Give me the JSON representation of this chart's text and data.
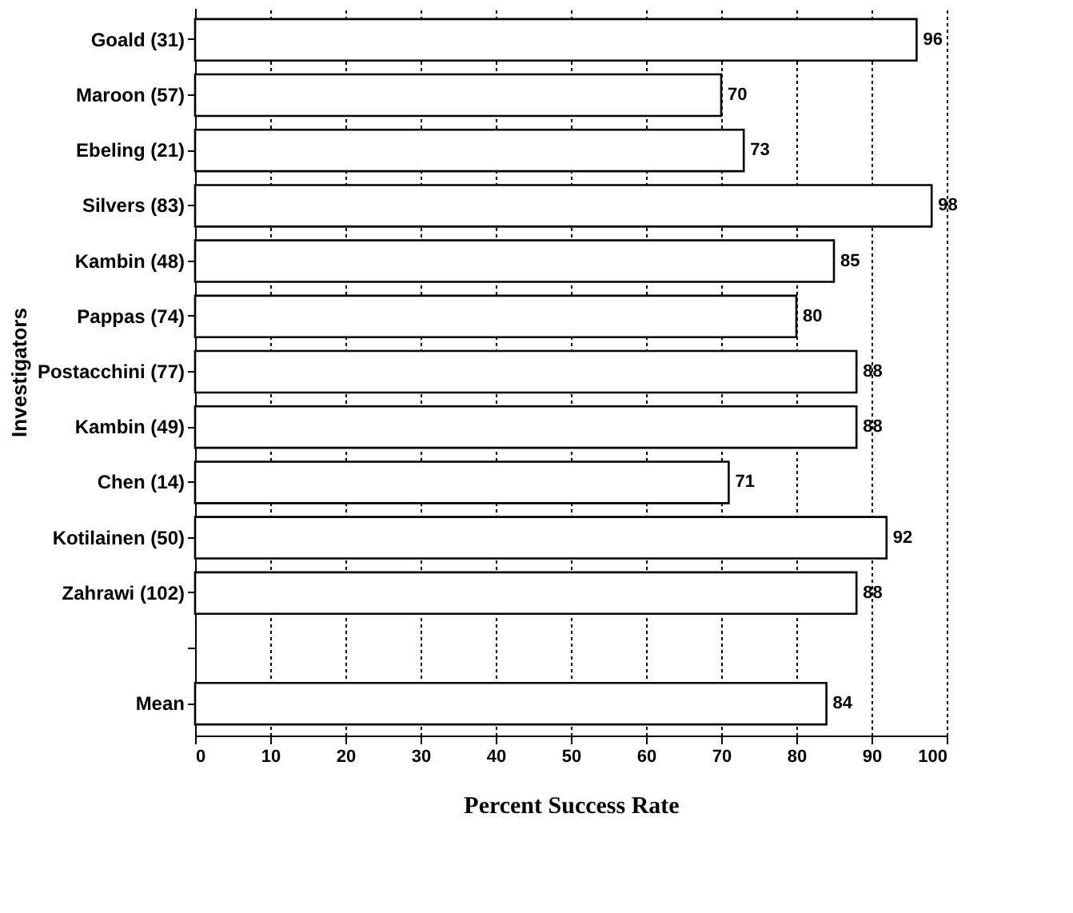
{
  "chart_data": {
    "type": "bar",
    "orientation": "horizontal",
    "xlabel": "Percent Success Rate",
    "ylabel": "Investigators",
    "categories": [
      "Goald (31)",
      "Maroon (57)",
      "Ebeling (21)",
      "Silvers (83)",
      "Kambin (48)",
      "Pappas (74)",
      "Postacchini (77)",
      "Kambin (49)",
      "Chen (14)",
      "Kotilainen (50)",
      "Zahrawi (102)",
      null,
      "Mean"
    ],
    "values": [
      96,
      70,
      73,
      98,
      85,
      80,
      88,
      88,
      71,
      92,
      88,
      null,
      84
    ],
    "color": "#ffffff",
    "xlim": [
      0,
      100
    ],
    "xticks": [
      0,
      10,
      20,
      30,
      40,
      50,
      60,
      70,
      80,
      90,
      100
    ],
    "grid": "x",
    "data_labels": true
  }
}
